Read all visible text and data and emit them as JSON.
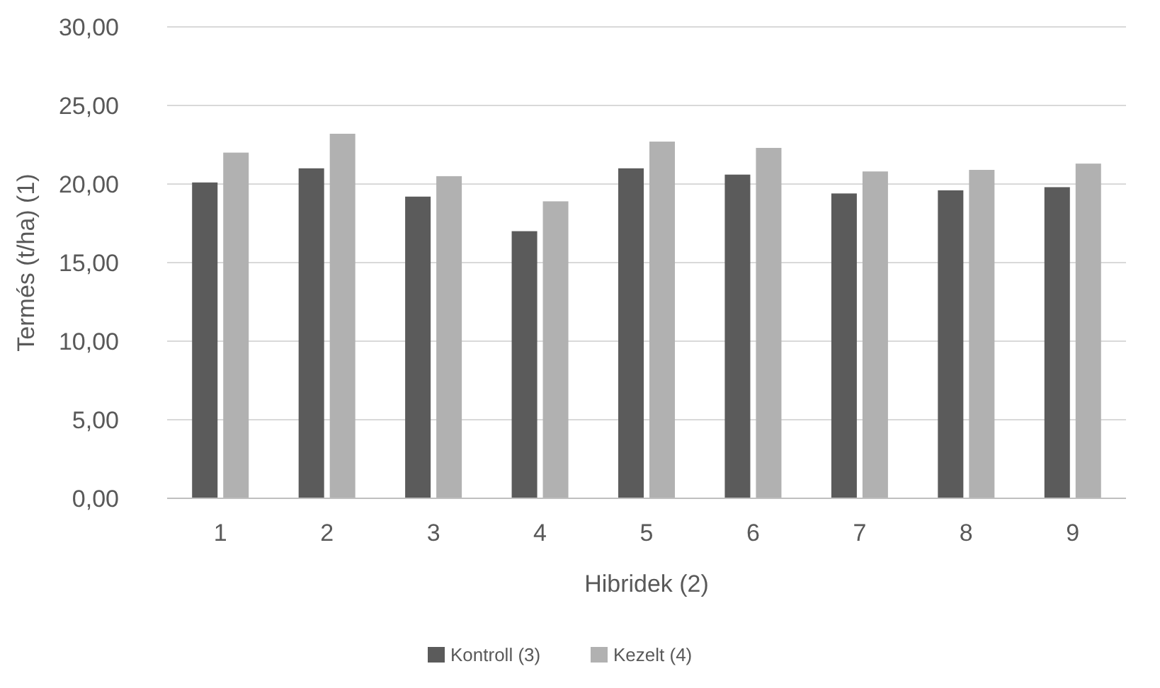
{
  "chart_data": {
    "type": "bar",
    "xlabel": "Hibridek (2)",
    "ylabel": "Termés (t/ha) (1)",
    "categories": [
      "1",
      "2",
      "3",
      "4",
      "5",
      "6",
      "7",
      "8",
      "9"
    ],
    "series": [
      {
        "name": "Kontroll (3)",
        "color": "#5b5b5b",
        "values": [
          20.1,
          21.0,
          19.2,
          17.0,
          21.0,
          20.6,
          19.4,
          19.6,
          19.8
        ]
      },
      {
        "name": "Kezelt (4)",
        "color": "#b1b1b1",
        "values": [
          22.0,
          23.2,
          20.5,
          18.9,
          22.7,
          22.3,
          20.8,
          20.9,
          21.3
        ]
      }
    ],
    "ylim": [
      0,
      30
    ],
    "yticks": [
      {
        "value": 0,
        "label": "0,00"
      },
      {
        "value": 5,
        "label": "5,00"
      },
      {
        "value": 10,
        "label": "10,00"
      },
      {
        "value": 15,
        "label": "15,00"
      },
      {
        "value": 20,
        "label": "20,00"
      },
      {
        "value": 25,
        "label": "25,00"
      },
      {
        "value": 30,
        "label": "30,00"
      }
    ],
    "grid": "y",
    "legend": "bottom"
  }
}
